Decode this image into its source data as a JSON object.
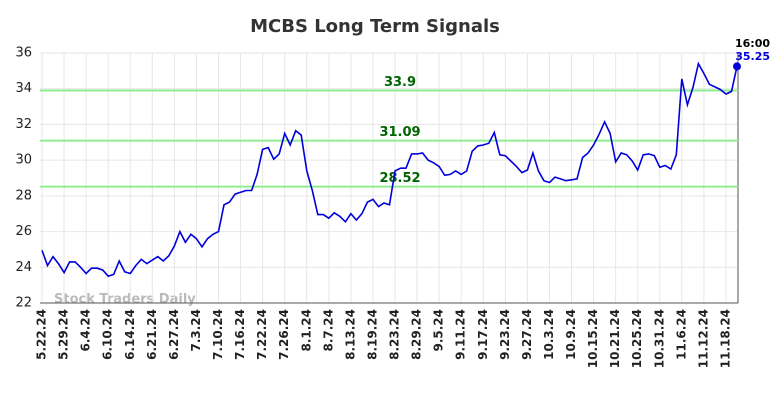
{
  "chart_data": {
    "type": "line",
    "title": "MCBS Long Term Signals",
    "watermark": "Stock Traders Daily",
    "color": "#0000dd",
    "grid": true,
    "ylim": [
      22,
      36
    ],
    "yticks": [
      22,
      24,
      26,
      28,
      30,
      32,
      34,
      36
    ],
    "categories": [
      "5.22.24",
      null,
      null,
      null,
      "5.29.24",
      null,
      null,
      null,
      "6.4.24",
      null,
      null,
      null,
      "6.10.24",
      null,
      null,
      null,
      "6.14.24",
      null,
      null,
      null,
      "6.21.24",
      null,
      null,
      null,
      "6.27.24",
      null,
      null,
      null,
      "7.3.24",
      null,
      null,
      null,
      "7.10.24",
      null,
      null,
      null,
      "7.16.24",
      null,
      null,
      null,
      "7.22.24",
      null,
      null,
      null,
      "7.26.24",
      null,
      null,
      null,
      "8.1.24",
      null,
      null,
      null,
      "8.7.24",
      null,
      null,
      null,
      "8.13.24",
      null,
      null,
      null,
      "8.19.24",
      null,
      null,
      null,
      "8.23.24",
      null,
      null,
      null,
      "8.29.24",
      null,
      null,
      null,
      "9.5.24",
      null,
      null,
      null,
      "9.11.24",
      null,
      null,
      null,
      "9.17.24",
      null,
      null,
      null,
      "9.23.24",
      null,
      null,
      null,
      "9.27.24",
      null,
      null,
      null,
      "10.3.24",
      null,
      null,
      null,
      "10.9.24",
      null,
      null,
      null,
      "10.15.24",
      null,
      null,
      null,
      "10.21.24",
      null,
      null,
      null,
      "10.25.24",
      null,
      null,
      null,
      "10.31.24",
      null,
      null,
      null,
      "11.6.24",
      null,
      null,
      null,
      "11.12.24",
      null,
      null,
      null,
      "11.18.24",
      null,
      null
    ],
    "values": [
      24.95,
      24.1,
      24.6,
      24.2,
      23.7,
      24.3,
      24.3,
      24.0,
      23.65,
      23.95,
      23.95,
      23.85,
      23.5,
      23.6,
      24.35,
      23.75,
      23.65,
      24.1,
      24.45,
      24.2,
      24.4,
      24.6,
      24.35,
      24.65,
      25.2,
      26.0,
      25.4,
      25.85,
      25.6,
      25.15,
      25.6,
      25.85,
      26.0,
      27.5,
      27.65,
      28.1,
      28.2,
      28.3,
      28.3,
      29.2,
      30.6,
      30.7,
      30.05,
      30.35,
      31.5,
      30.85,
      31.65,
      31.4,
      29.4,
      28.3,
      26.95,
      26.95,
      26.75,
      27.05,
      26.85,
      26.55,
      27.0,
      26.65,
      27.0,
      27.65,
      27.8,
      27.4,
      27.6,
      27.5,
      29.4,
      29.55,
      29.55,
      30.35,
      30.35,
      30.4,
      30.0,
      29.85,
      29.65,
      29.15,
      29.2,
      29.4,
      29.2,
      29.4,
      30.5,
      30.8,
      30.85,
      30.95,
      31.55,
      30.3,
      30.25,
      29.95,
      29.65,
      29.3,
      29.45,
      30.4,
      29.4,
      28.85,
      28.75,
      29.05,
      28.95,
      28.85,
      28.9,
      28.95,
      30.15,
      30.4,
      30.85,
      31.45,
      32.15,
      31.5,
      29.9,
      30.4,
      30.3,
      29.95,
      29.45,
      30.3,
      30.35,
      30.25,
      29.6,
      29.7,
      29.5,
      30.3,
      34.55,
      33.1,
      34.05,
      35.4,
      34.85,
      34.25,
      34.1,
      33.95,
      33.7,
      33.85,
      35.25
    ],
    "hlines": [
      {
        "value": 33.9,
        "color": "#90ee90",
        "label_color": "#006400"
      },
      {
        "value": 31.09,
        "color": "#90ee90",
        "label_color": "#006400"
      },
      {
        "value": 28.52,
        "color": "#90ee90",
        "label_color": "#006400"
      }
    ],
    "last_time": "16:00"
  }
}
